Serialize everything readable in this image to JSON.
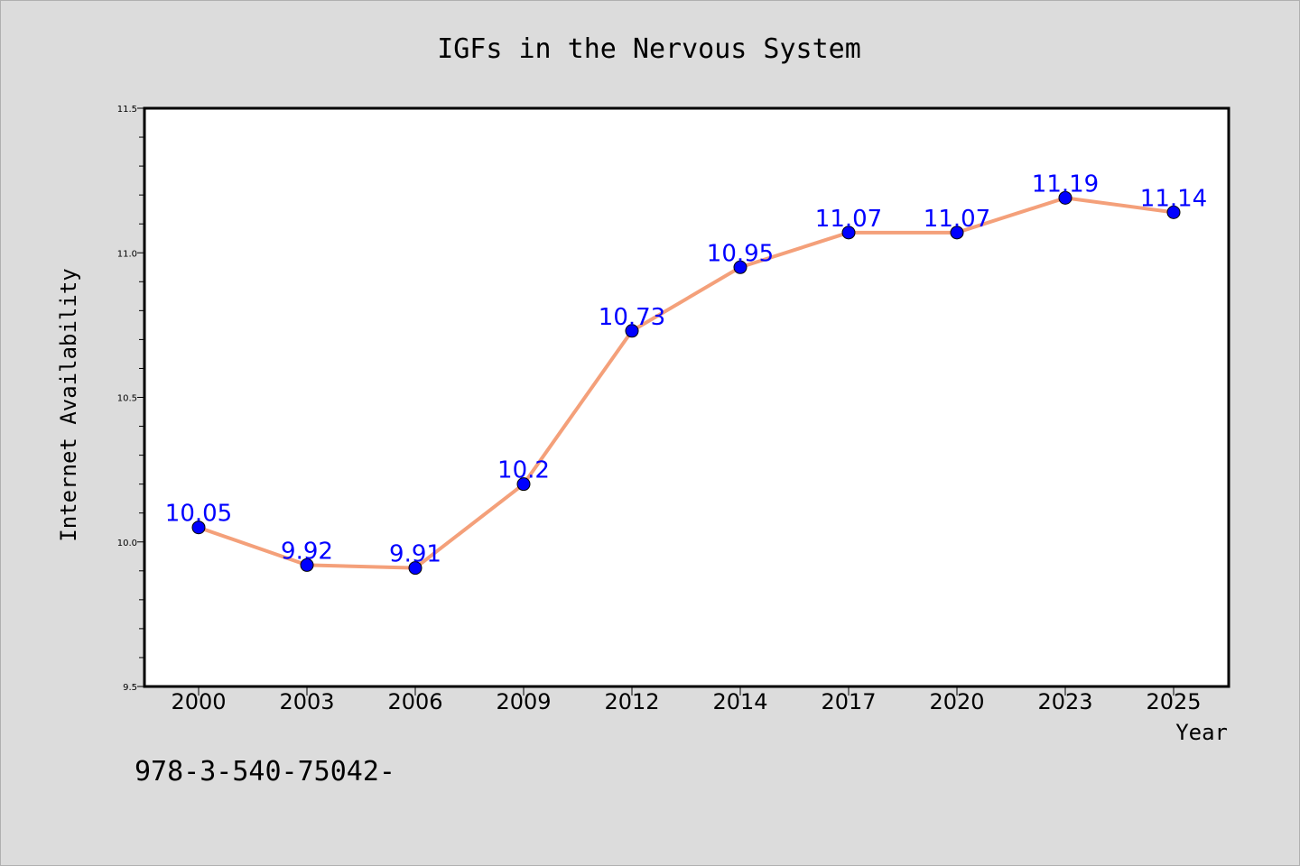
{
  "colors": {
    "background": "#dcdcdc",
    "plot_background": "#ffffff",
    "line": "#f4a07a",
    "marker": "#0000ff",
    "data_label": "#0000ff"
  },
  "footer_text": "978-3-540-75042-",
  "chart_data": {
    "type": "line",
    "title": "IGFs in the Nervous System",
    "xlabel": "Year",
    "ylabel": "Internet Availability",
    "categories": [
      "2000",
      "2003",
      "2006",
      "2009",
      "2012",
      "2014",
      "2017",
      "2020",
      "2023",
      "2025"
    ],
    "series": [
      {
        "values": [
          10.05,
          9.92,
          9.91,
          10.2,
          10.73,
          10.95,
          11.07,
          11.07,
          11.19,
          11.14
        ],
        "labels": [
          "10.05",
          "9.92",
          "9.91",
          "10.2",
          "10.73",
          "10.95",
          "11.07",
          "11.07",
          "11.19",
          "11.14"
        ]
      }
    ],
    "ylim": [
      9.5,
      11.5
    ],
    "y_major_ticks": [
      "9.5",
      "10.0",
      "10.5",
      "11.0",
      "11.5"
    ],
    "y_minor_step": 0.1,
    "grid": false,
    "legend": "none"
  }
}
